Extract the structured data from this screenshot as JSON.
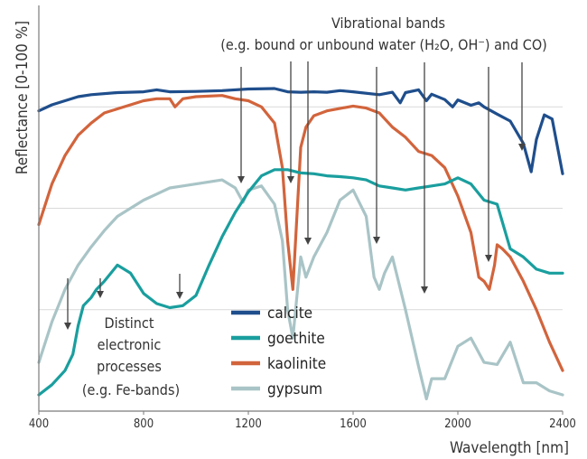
{
  "chart_data": {
    "type": "line",
    "xlabel": "Wavelength [nm]",
    "ylabel": "Reflectance [0-100 %]",
    "xlim": [
      400,
      2400
    ],
    "xticks": [
      "400",
      "800",
      "1200",
      "1600",
      "2000",
      "2400"
    ],
    "ylim": [
      0,
      100
    ],
    "grid": "y",
    "legend_position": "bottom-center",
    "series": [
      {
        "name": "calcite",
        "color": "#1f4e8c",
        "x": [
          400,
          450,
          500,
          550,
          600,
          700,
          800,
          850,
          900,
          1000,
          1100,
          1200,
          1300,
          1350,
          1400,
          1450,
          1500,
          1550,
          1600,
          1700,
          1750,
          1780,
          1800,
          1850,
          1880,
          1900,
          1950,
          1980,
          2000,
          2050,
          2080,
          2100,
          2150,
          2200,
          2250,
          2280,
          2300,
          2330,
          2360,
          2400
        ],
        "y": [
          74,
          75.5,
          76.5,
          77.5,
          78,
          78.5,
          78.7,
          79.2,
          78.7,
          78.8,
          79,
          79.4,
          79.5,
          78.7,
          78.6,
          78.7,
          78.6,
          79,
          78.7,
          78,
          78.6,
          76,
          78.5,
          79.2,
          76.5,
          78.1,
          76.8,
          75,
          76.7,
          75.4,
          76,
          75,
          73.2,
          71.5,
          66,
          59,
          67,
          73,
          72,
          58.5
        ]
      },
      {
        "name": "goethite",
        "color": "#1a9e9e",
        "x": [
          400,
          450,
          500,
          530,
          550,
          570,
          600,
          620,
          650,
          700,
          750,
          800,
          850,
          900,
          950,
          1000,
          1050,
          1100,
          1150,
          1200,
          1250,
          1300,
          1350,
          1400,
          1450,
          1500,
          1550,
          1600,
          1650,
          1700,
          1750,
          1800,
          1850,
          1900,
          1950,
          2000,
          2050,
          2100,
          2150,
          2200,
          2250,
          2300,
          2350,
          2400
        ],
        "y": [
          4,
          6.5,
          10,
          14,
          21,
          26,
          28,
          30,
          32,
          36,
          34,
          29,
          26.5,
          25.5,
          26,
          28.5,
          36,
          43,
          49,
          54,
          58,
          59.5,
          59.5,
          58.7,
          58.5,
          58,
          57.8,
          57.5,
          57,
          55.5,
          55,
          54.5,
          55,
          55.5,
          56,
          57.5,
          56,
          52,
          51,
          40,
          38,
          35,
          34,
          34
        ]
      },
      {
        "name": "kaolinite",
        "color": "#d2643c",
        "x": [
          400,
          450,
          500,
          550,
          600,
          650,
          700,
          800,
          850,
          900,
          920,
          950,
          1000,
          1100,
          1150,
          1200,
          1250,
          1300,
          1330,
          1350,
          1370,
          1400,
          1420,
          1450,
          1500,
          1600,
          1650,
          1700,
          1750,
          1800,
          1850,
          1900,
          1950,
          2000,
          2050,
          2080,
          2100,
          2120,
          2140,
          2150,
          2170,
          2200,
          2250,
          2300,
          2350,
          2400
        ],
        "y": [
          46,
          56,
          63,
          68,
          71,
          73.5,
          74.5,
          76.5,
          77,
          77,
          75,
          77,
          77.5,
          77.8,
          77,
          76.5,
          75,
          71,
          60,
          42,
          30,
          65,
          70,
          72.8,
          74,
          75.2,
          74.7,
          73.5,
          70,
          67.5,
          64,
          63,
          60,
          53,
          44,
          33,
          32,
          30,
          36,
          41,
          40,
          38,
          32,
          25,
          17,
          10
        ]
      },
      {
        "name": "gypsum",
        "color": "#a9c4c6",
        "x": [
          400,
          450,
          500,
          550,
          600,
          650,
          700,
          750,
          800,
          850,
          900,
          950,
          1000,
          1050,
          1100,
          1150,
          1180,
          1200,
          1250,
          1300,
          1330,
          1350,
          1370,
          1400,
          1420,
          1450,
          1500,
          1550,
          1600,
          1650,
          1680,
          1700,
          1720,
          1750,
          1800,
          1850,
          1880,
          1900,
          1950,
          2000,
          2050,
          2100,
          2150,
          2200,
          2250,
          2300,
          2350,
          2400
        ],
        "y": [
          12,
          22,
          30,
          36,
          40.5,
          44.5,
          48,
          50,
          52,
          53.5,
          55,
          55.5,
          56,
          56.5,
          57,
          55,
          51.5,
          54.5,
          55.5,
          51,
          42,
          25,
          18,
          38,
          33,
          38,
          44,
          52,
          54.5,
          48,
          33,
          30,
          34,
          38,
          25,
          11,
          3,
          8,
          8,
          16,
          18,
          12,
          11.5,
          17,
          7,
          7,
          5,
          4
        ]
      }
    ],
    "annotations": [
      {
        "lines": [
          "Vibrational bands",
          "(e.g. bound or unbound water (H₂O, OH⁻) and CO)"
        ]
      },
      {
        "lines": [
          "Distinct",
          "electronic",
          "processes",
          "(e.g. Fe-bands)"
        ]
      }
    ],
    "arrows_x": [
      500,
      625,
      935,
      1170,
      1350,
      1430,
      1700,
      1880,
      2110,
      2250
    ]
  }
}
